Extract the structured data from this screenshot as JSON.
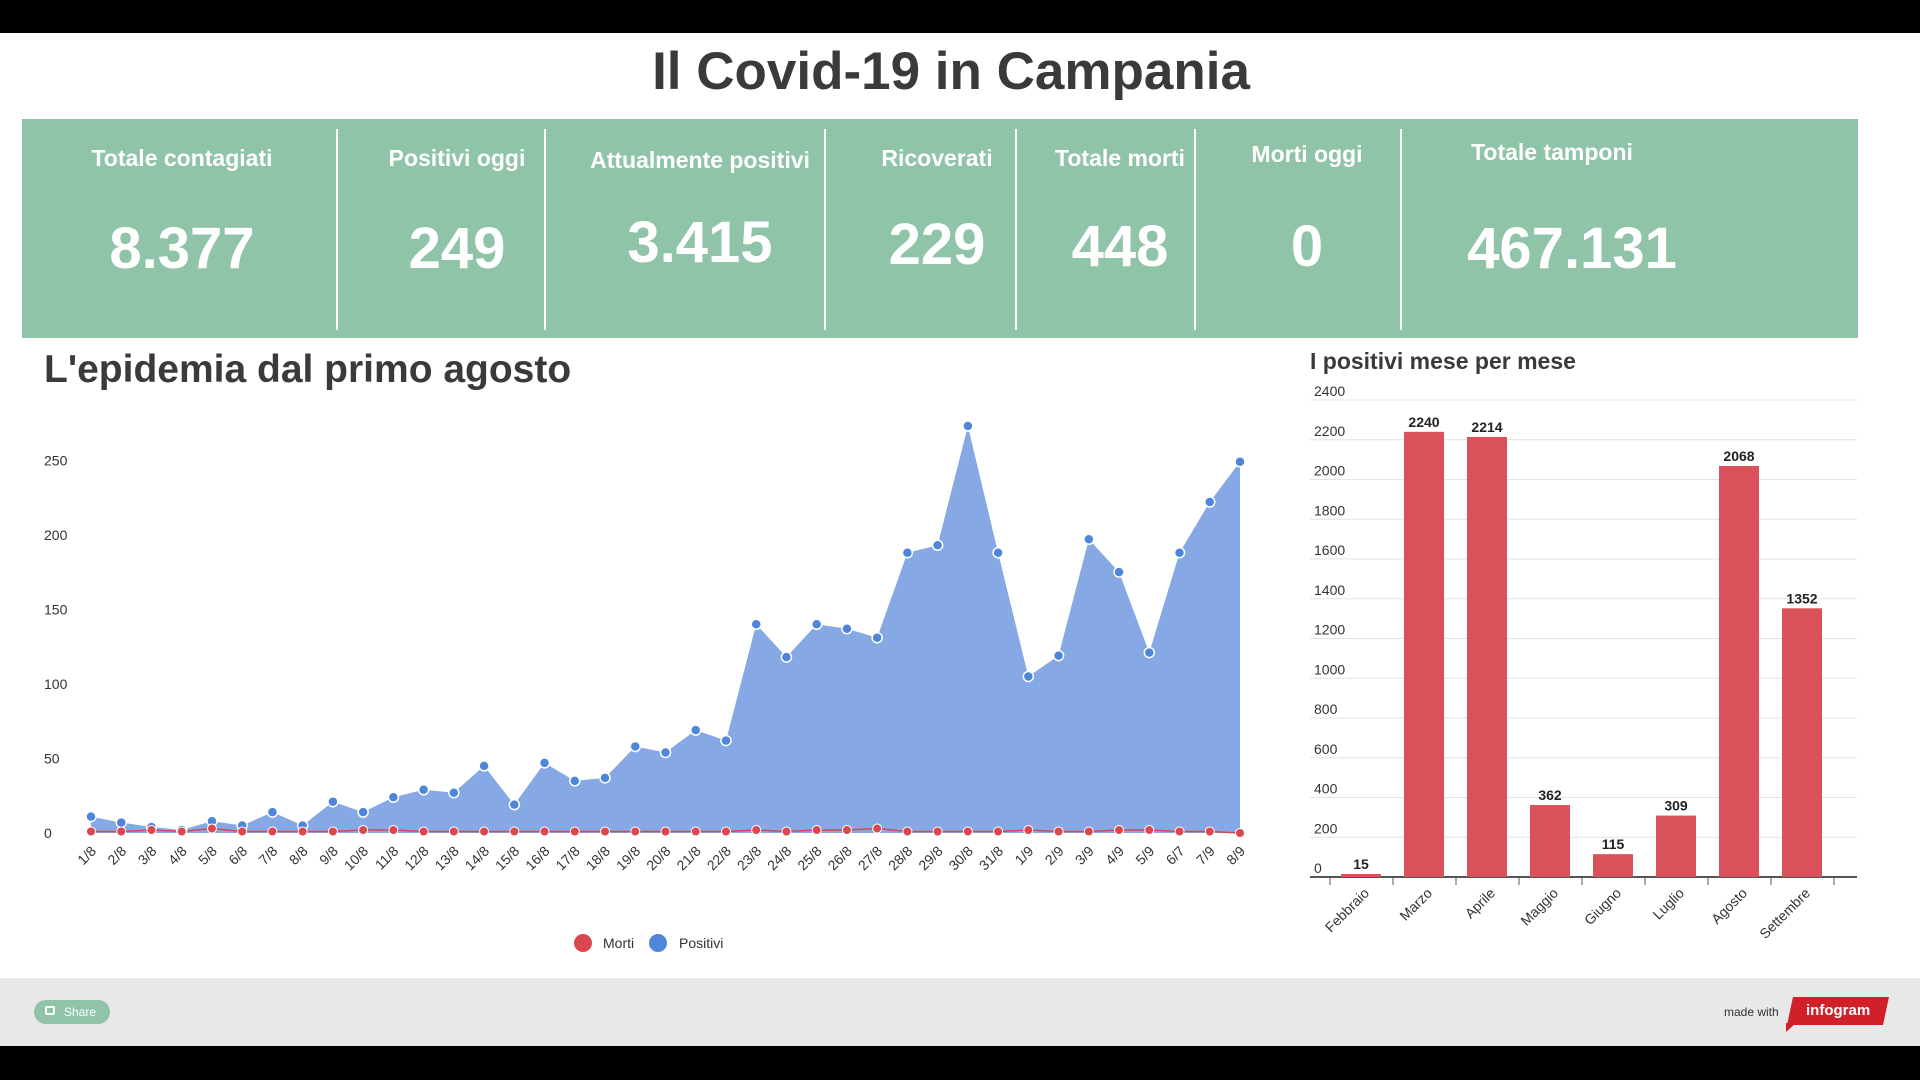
{
  "title": "Il Covid-19 in Campania",
  "colors": {
    "stats_bg": "#8fc4a8",
    "area_fill": "#86a9e6",
    "positivi": "#4f86d9",
    "morti": "#d9484f",
    "bar": "#d9525a",
    "footer_bg": "#e8e8e8",
    "infogram": "#d0202a"
  },
  "stats": [
    {
      "label": "Totale contagiati",
      "value": "8.377"
    },
    {
      "label": "Positivi oggi",
      "value": "249"
    },
    {
      "label": "Attualmente positivi",
      "value": "3.415"
    },
    {
      "label": "Ricoverati",
      "value": "229"
    },
    {
      "label": "Totale morti",
      "value": "448"
    },
    {
      "label": "Morti oggi",
      "value": "0"
    },
    {
      "label": "Totale tamponi",
      "value": "467.131"
    }
  ],
  "left_chart_title": "L'epidemia dal primo agosto",
  "right_chart_title": "I positivi mese per mese",
  "chart_data": [
    {
      "type": "area",
      "title": "L'epidemia dal primo agosto",
      "x": [
        "1/8",
        "2/8",
        "3/8",
        "4/8",
        "5/8",
        "6/8",
        "7/8",
        "8/8",
        "9/8",
        "10/8",
        "11/8",
        "12/8",
        "13/8",
        "14/8",
        "15/8",
        "16/8",
        "17/8",
        "18/8",
        "19/8",
        "20/8",
        "21/8",
        "22/8",
        "23/8",
        "24/8",
        "25/8",
        "26/8",
        "27/8",
        "28/8",
        "29/8",
        "30/8",
        "31/8",
        "1/9",
        "2/9",
        "3/9",
        "4/9",
        "5/9",
        "6/7",
        "7/9",
        "8/9"
      ],
      "series": [
        {
          "name": "Positivi",
          "values": [
            11,
            7,
            4,
            2,
            8,
            5,
            14,
            5,
            21,
            14,
            24,
            29,
            27,
            45,
            19,
            47,
            35,
            37,
            58,
            54,
            69,
            62,
            140,
            118,
            140,
            137,
            131,
            188,
            193,
            273,
            188,
            105,
            119,
            197,
            175,
            121,
            188,
            222,
            249
          ]
        },
        {
          "name": "Morti",
          "values": [
            1,
            1,
            2,
            1,
            3,
            1,
            1,
            1,
            1,
            2,
            2,
            1,
            1,
            1,
            1,
            1,
            1,
            1,
            1,
            1,
            1,
            1,
            2,
            1,
            2,
            2,
            3,
            1,
            1,
            1,
            1,
            2,
            1,
            1,
            2,
            2,
            1,
            1,
            0
          ]
        }
      ],
      "yticks": [
        0,
        50,
        100,
        150,
        200,
        250
      ],
      "ylim": [
        0,
        275
      ],
      "legend": [
        "Morti",
        "Positivi"
      ],
      "legend_position": "bottom"
    },
    {
      "type": "bar",
      "title": "I positivi mese per mese",
      "categories": [
        "Febbraio",
        "Marzo",
        "Aprile",
        "Maggio",
        "Giugno",
        "Luglio",
        "Agosto",
        "Settembre"
      ],
      "values": [
        15,
        2240,
        2214,
        362,
        115,
        309,
        2068,
        1352
      ],
      "yticks": [
        0,
        200,
        400,
        600,
        800,
        1000,
        1200,
        1400,
        1600,
        1800,
        2000,
        2200,
        2400
      ],
      "ylim": [
        0,
        2400
      ],
      "grid": true
    }
  ],
  "footer": {
    "share_label": "Share",
    "made_with": "made with",
    "brand": "infogram"
  }
}
